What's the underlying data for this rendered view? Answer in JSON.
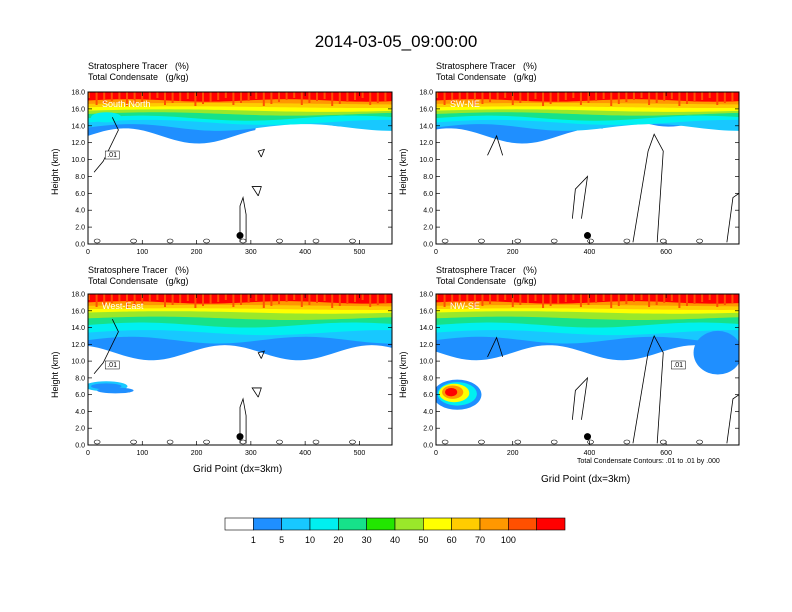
{
  "title": "2014-03-05_09:00:00",
  "colors": {
    "levels": [
      "#ffffff",
      "#1f8fff",
      "#18c8ff",
      "#00f0f0",
      "#16e28a",
      "#22e600",
      "#9ae82a",
      "#ffff00",
      "#ffcc00",
      "#ff9800",
      "#ff5000",
      "#ff0000"
    ],
    "contour": "#000000",
    "marker": "#000000"
  },
  "colorbar": {
    "labels": [
      "1",
      "5",
      "10",
      "20",
      "30",
      "40",
      "50",
      "60",
      "70",
      "100"
    ]
  },
  "footnote": "Total Condensate Contours: .01 to .01 by .000",
  "chart_data": [
    {
      "type": "heatmap",
      "panel": "South-North",
      "title_lines": [
        "Stratosphere Tracer   (%)",
        "Total Condensate   (g/kg)"
      ],
      "xlabel": "",
      "ylabel": "Height (km)",
      "xlim": [
        0,
        560
      ],
      "ylim": [
        0,
        18
      ],
      "xticks": [
        "0",
        "100",
        "200",
        "300",
        "400",
        "500"
      ],
      "yticks": [
        "0.0",
        "2.0",
        "4.0",
        "6.0",
        "8.0",
        "10.0",
        "12.0",
        "14.0",
        "16.0",
        "18.0"
      ],
      "contour_label": ".01",
      "marker": {
        "x": 280,
        "y": 1.0
      }
    },
    {
      "type": "heatmap",
      "panel": "SW-NE",
      "title_lines": [
        "Stratosphere Tracer   (%)",
        "Total Condensate   (g/kg)"
      ],
      "xlabel": "",
      "ylabel": "Height (km)",
      "xlim": [
        0,
        790
      ],
      "ylim": [
        0,
        18
      ],
      "xticks": [
        "0",
        "200",
        "400",
        "600"
      ],
      "yticks": [
        "0.0",
        "2.0",
        "4.0",
        "6.0",
        "8.0",
        "10.0",
        "12.0",
        "14.0",
        "16.0",
        "18.0"
      ],
      "contour_label": "",
      "marker": {
        "x": 395,
        "y": 1.0
      }
    },
    {
      "type": "heatmap",
      "panel": "West-East",
      "title_lines": [
        "Stratosphere Tracer   (%)",
        "Total Condensate   (g/kg)"
      ],
      "xlabel": "Grid Point (dx=3km)",
      "ylabel": "Height (km)",
      "xlim": [
        0,
        560
      ],
      "ylim": [
        0,
        18
      ],
      "xticks": [
        "0",
        "100",
        "200",
        "300",
        "400",
        "500"
      ],
      "yticks": [
        "0.0",
        "2.0",
        "4.0",
        "6.0",
        "8.0",
        "10.0",
        "12.0",
        "14.0",
        "16.0",
        "18.0"
      ],
      "contour_label": ".01",
      "marker": {
        "x": 280,
        "y": 1.0
      }
    },
    {
      "type": "heatmap",
      "panel": "NW-SE",
      "title_lines": [
        "Stratosphere Tracer   (%)",
        "Total Condensate   (g/kg)"
      ],
      "xlabel": "Grid Point (dx=3km)",
      "ylabel": "Height (km)",
      "xlim": [
        0,
        790
      ],
      "ylim": [
        0,
        18
      ],
      "xticks": [
        "0",
        "200",
        "400",
        "600"
      ],
      "yticks": [
        "0.0",
        "2.0",
        "4.0",
        "6.0",
        "8.0",
        "10.0",
        "12.0",
        "14.0",
        "16.0",
        "18.0"
      ],
      "contour_label": ".01",
      "marker": {
        "x": 395,
        "y": 1.0
      }
    }
  ]
}
